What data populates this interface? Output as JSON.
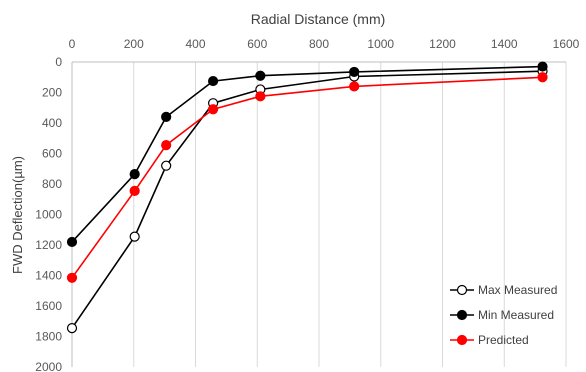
{
  "chart_data": {
    "type": "line",
    "title": "",
    "xlabel": "Radial Distance (mm)",
    "ylabel": "FWD Deflection(µm)",
    "xlim": [
      0,
      1600
    ],
    "ylim": [
      0,
      2000
    ],
    "y_inverted": true,
    "x_axis_position": "top",
    "x_ticks": [
      0,
      200,
      400,
      600,
      800,
      1000,
      1200,
      1400,
      1600
    ],
    "y_ticks": [
      0,
      200,
      400,
      600,
      800,
      1000,
      1200,
      1400,
      1600,
      1800,
      2000
    ],
    "grid": "vertical",
    "legend_position": "bottom-right",
    "series": [
      {
        "name": "Max Measured",
        "color": "#000000",
        "marker": "open-circle",
        "x": [
          0,
          203,
          305,
          457,
          610,
          914,
          1524
        ],
        "y": [
          1745,
          1145,
          680,
          270,
          180,
          95,
          60
        ]
      },
      {
        "name": "Min Measured",
        "color": "#000000",
        "marker": "filled-circle",
        "x": [
          0,
          203,
          305,
          457,
          610,
          914,
          1524
        ],
        "y": [
          1180,
          735,
          360,
          125,
          90,
          65,
          30
        ]
      },
      {
        "name": "Predicted",
        "color": "#ff0000",
        "marker": "filled-circle",
        "x": [
          0,
          203,
          305,
          457,
          610,
          914,
          1524
        ],
        "y": [
          1415,
          845,
          545,
          310,
          225,
          160,
          100
        ]
      }
    ]
  }
}
